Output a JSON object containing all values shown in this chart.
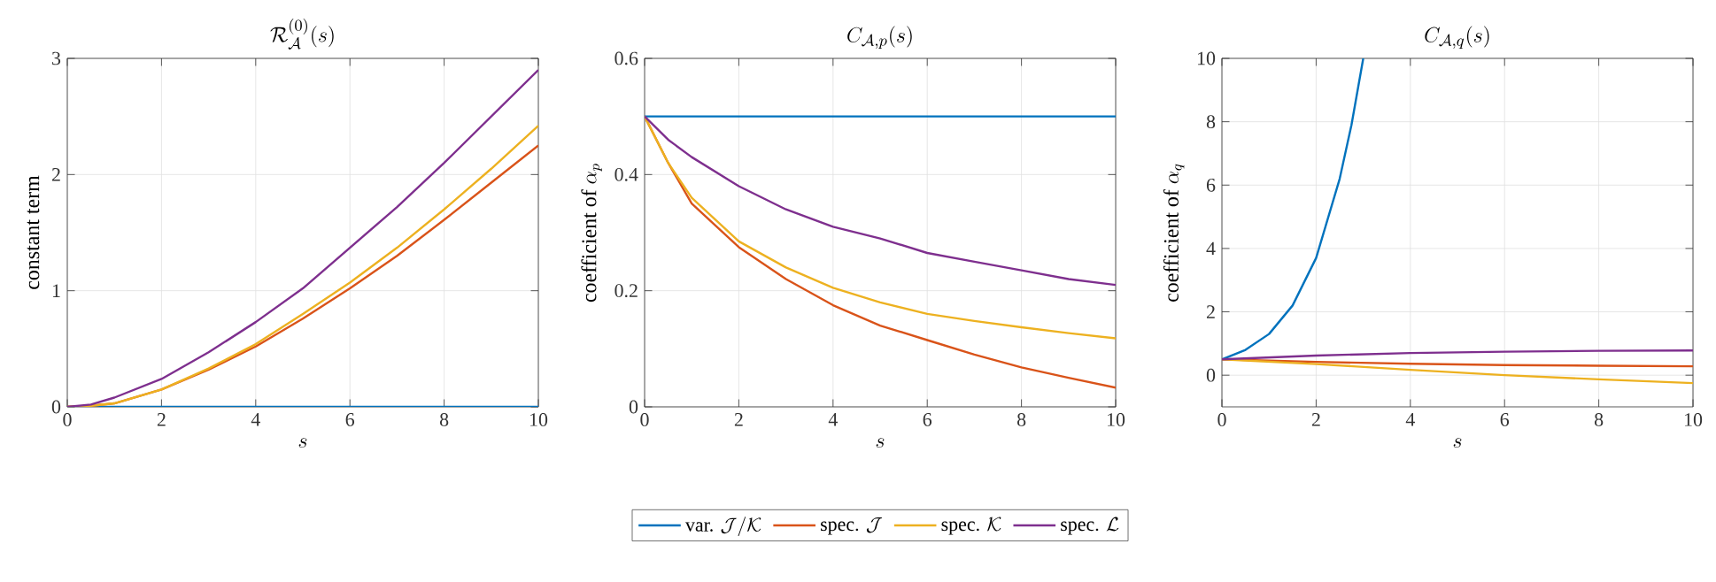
{
  "chart_data": [
    {
      "type": "line",
      "title": "\\mathcal{R}_{\\mathcal{A}}^{(0)}(s)",
      "xlabel": "s",
      "ylabel": "\\text{constant term}",
      "x": [
        0,
        0.5,
        1,
        2,
        3,
        4,
        5,
        6,
        7,
        8,
        9,
        10
      ],
      "xlim": [
        0,
        10
      ],
      "ylim": [
        0,
        3
      ],
      "xticks": [
        0,
        2,
        4,
        6,
        8,
        10
      ],
      "yticks": [
        0,
        1,
        2,
        3
      ],
      "grid": true,
      "series": [
        {
          "color": "#0072bd",
          "values": [
            0,
            0,
            0,
            0,
            0,
            0,
            0,
            0,
            0,
            0,
            0,
            0
          ]
        },
        {
          "color": "#d95319",
          "values": [
            0,
            0.01,
            0.03,
            0.15,
            0.32,
            0.52,
            0.76,
            1.02,
            1.3,
            1.61,
            1.93,
            2.25
          ]
        },
        {
          "color": "#edb120",
          "values": [
            0,
            0.01,
            0.03,
            0.15,
            0.33,
            0.54,
            0.8,
            1.07,
            1.37,
            1.7,
            2.05,
            2.42
          ]
        },
        {
          "color": "#7e2f8e",
          "values": [
            0,
            0.02,
            0.08,
            0.24,
            0.47,
            0.73,
            1.02,
            1.37,
            1.72,
            2.1,
            2.5,
            2.9
          ]
        }
      ]
    },
    {
      "type": "line",
      "title": "C_{\\mathcal{A},p}(s)",
      "xlabel": "s",
      "ylabel": "\\text{coefficient of }\\alpha_p",
      "x": [
        0,
        0.5,
        1,
        2,
        3,
        4,
        5,
        6,
        7,
        8,
        9,
        10
      ],
      "xlim": [
        0,
        10
      ],
      "ylim": [
        0,
        0.6
      ],
      "xticks": [
        0,
        2,
        4,
        6,
        8,
        10
      ],
      "yticks": [
        0,
        0.2,
        0.4,
        0.6
      ],
      "grid": true,
      "legend": "bottom",
      "series": [
        {
          "name": "\\text{var. }\\mathcal{J}/\\mathcal{K}",
          "color": "#0072bd",
          "values": [
            0.5,
            0.5,
            0.5,
            0.5,
            0.5,
            0.5,
            0.5,
            0.5,
            0.5,
            0.5,
            0.5,
            0.5
          ]
        },
        {
          "name": "\\text{spec. }\\mathcal{J}",
          "color": "#d95319",
          "values": [
            0.5,
            0.42,
            0.35,
            0.275,
            0.22,
            0.175,
            0.14,
            0.115,
            0.09,
            0.068,
            0.05,
            0.033
          ]
        },
        {
          "name": "\\text{spec. }\\mathcal{K}",
          "color": "#edb120",
          "values": [
            0.5,
            0.42,
            0.36,
            0.285,
            0.24,
            0.205,
            0.18,
            0.16,
            0.148,
            0.137,
            0.127,
            0.118
          ]
        },
        {
          "name": "\\text{spec. }\\mathcal{L}",
          "color": "#7e2f8e",
          "values": [
            0.5,
            0.46,
            0.43,
            0.38,
            0.34,
            0.31,
            0.29,
            0.265,
            0.25,
            0.235,
            0.22,
            0.21
          ]
        }
      ]
    },
    {
      "type": "line",
      "title": "C_{\\mathcal{A},q}(s)",
      "xlabel": "s",
      "ylabel": "\\text{coefficient of }\\alpha_q",
      "x": [
        0,
        2,
        4,
        6,
        8,
        10
      ],
      "xlim": [
        0,
        10
      ],
      "ylim": [
        -1,
        10
      ],
      "xticks": [
        0,
        2,
        4,
        6,
        8,
        10
      ],
      "yticks": [
        0,
        2,
        4,
        6,
        8,
        10
      ],
      "grid": true,
      "series": [
        {
          "color": "#0072bd",
          "x": [
            0,
            0.5,
            1,
            1.5,
            2,
            2.5,
            2.75,
            3
          ],
          "values": [
            0.5,
            0.8,
            1.3,
            2.2,
            3.7,
            6.2,
            7.9,
            10
          ]
        },
        {
          "color": "#d95319",
          "values": [
            0.5,
            0.42,
            0.36,
            0.32,
            0.3,
            0.28
          ]
        },
        {
          "color": "#edb120",
          "values": [
            0.5,
            0.35,
            0.17,
            0.0,
            -0.13,
            -0.25
          ]
        },
        {
          "color": "#7e2f8e",
          "values": [
            0.5,
            0.62,
            0.7,
            0.74,
            0.77,
            0.78
          ]
        }
      ]
    }
  ]
}
